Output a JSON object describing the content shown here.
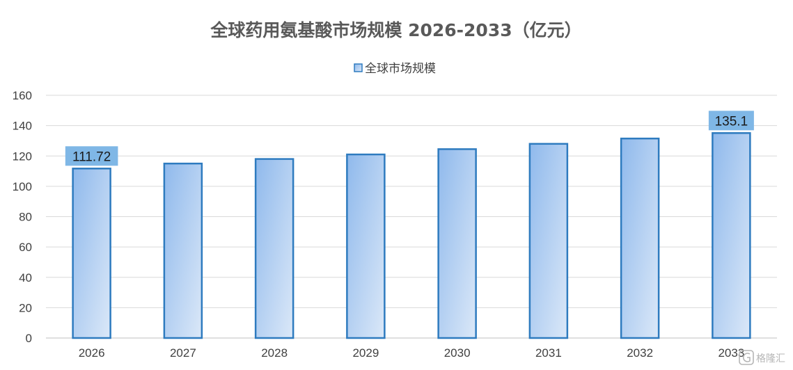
{
  "chart_data": {
    "type": "bar",
    "title": "全球药用氨基酸市场规模 2026-2033（亿元）",
    "categories": [
      "2026",
      "2027",
      "2028",
      "2029",
      "2030",
      "2031",
      "2032",
      "2033"
    ],
    "series": [
      {
        "name": "全球市场规模",
        "values": [
          111.72,
          115,
          118,
          121,
          124.5,
          128,
          131.5,
          135.1
        ]
      }
    ],
    "data_labels": [
      {
        "category": "2026",
        "text": "111.72"
      },
      {
        "category": "2033",
        "text": "135.1"
      }
    ],
    "ylim": [
      0,
      160
    ],
    "yticks": [
      0,
      20,
      40,
      60,
      80,
      100,
      120,
      140,
      160
    ],
    "xlabel": "",
    "ylabel": "",
    "grid": true,
    "legend_position": "top-center",
    "colors": {
      "bar_fill_start": "#8fb9ec",
      "bar_fill_end": "#dbe8f8",
      "bar_stroke": "#2e7bbf",
      "label_bg": "#7fb7e6",
      "grid": "#d9d9d9",
      "axis": "#bfbfbf"
    }
  },
  "watermark": {
    "icon": "gelonghui-logo-icon",
    "text": "格隆汇"
  }
}
